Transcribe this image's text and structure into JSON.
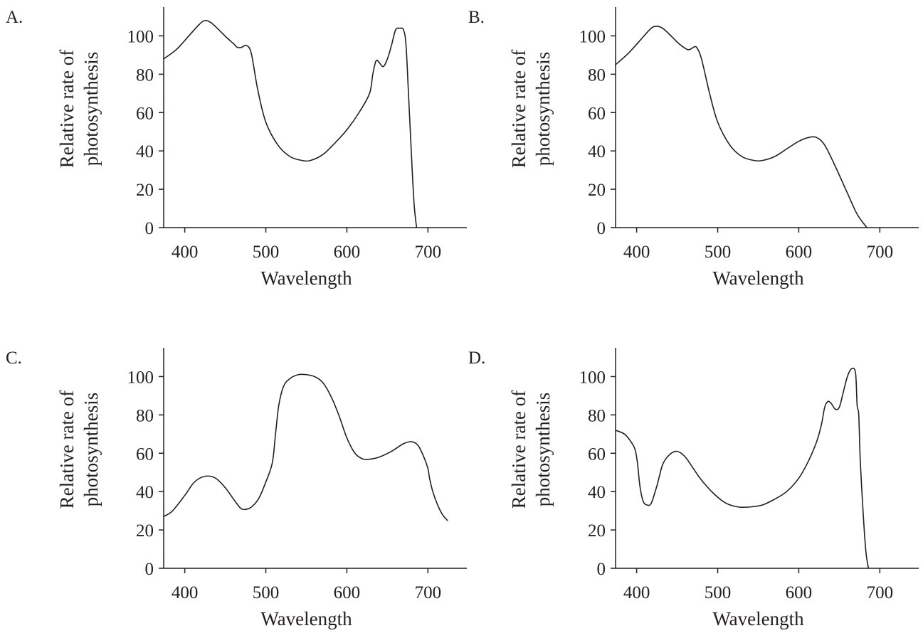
{
  "figure": {
    "panels": [
      "A.",
      "B.",
      "C.",
      "D."
    ]
  },
  "chart_data": [
    {
      "type": "line",
      "panel": "A.",
      "xlabel": "Wavelength",
      "ylabel": [
        "Relative rate of",
        "photosynthesis"
      ],
      "xticks": [
        400,
        500,
        600,
        700
      ],
      "yticks": [
        0,
        20,
        40,
        60,
        80,
        100
      ],
      "xlim": [
        374,
        748
      ],
      "ylim": [
        0,
        115
      ],
      "grid": false,
      "series": [
        {
          "x": [
            374,
            390,
            405,
            418,
            425,
            432,
            440,
            452,
            460,
            465,
            470,
            476,
            482,
            490,
            500,
            515,
            530,
            545,
            555,
            570,
            585,
            600,
            615,
            628,
            632,
            636,
            640,
            645,
            650,
            655,
            660,
            665,
            670,
            673,
            676,
            680,
            683,
            686
          ],
          "y": [
            88,
            93,
            100,
            106,
            108,
            107,
            104,
            99,
            96,
            94,
            94,
            95,
            91,
            72,
            55,
            43,
            37,
            35,
            35,
            38,
            44,
            51,
            60,
            70,
            80,
            87,
            86,
            84,
            88,
            95,
            103,
            104,
            103,
            95,
            70,
            35,
            12,
            0
          ]
        }
      ]
    },
    {
      "type": "line",
      "panel": "B.",
      "xlabel": "Wavelength",
      "ylabel": [
        "Relative rate of",
        "photosynthesis"
      ],
      "xticks": [
        400,
        500,
        600,
        700
      ],
      "yticks": [
        0,
        20,
        40,
        60,
        80,
        100
      ],
      "xlim": [
        374,
        748
      ],
      "ylim": [
        0,
        115
      ],
      "grid": false,
      "series": [
        {
          "x": [
            374,
            390,
            405,
            418,
            425,
            432,
            440,
            452,
            462,
            466,
            470,
            474,
            480,
            490,
            500,
            515,
            530,
            545,
            555,
            570,
            585,
            600,
            612,
            622,
            632,
            645,
            660,
            672,
            684
          ],
          "y": [
            85,
            91,
            98,
            104,
            105,
            104,
            101,
            96,
            93,
            93,
            94,
            94,
            88,
            70,
            55,
            43,
            37,
            35,
            35,
            37,
            41,
            45,
            47,
            47,
            43,
            32,
            18,
            7,
            0
          ]
        }
      ]
    },
    {
      "type": "line",
      "panel": "C.",
      "xlabel": "Wavelength",
      "ylabel": [
        "Relative rate of",
        "photosynthesis"
      ],
      "xticks": [
        400,
        500,
        600,
        700
      ],
      "yticks": [
        0,
        20,
        40,
        60,
        80,
        100
      ],
      "xlim": [
        374,
        748
      ],
      "ylim": [
        0,
        115
      ],
      "grid": false,
      "series": [
        {
          "x": [
            374,
            385,
            400,
            412,
            425,
            438,
            450,
            462,
            470,
            478,
            485,
            492,
            500,
            508,
            512,
            516,
            522,
            530,
            540,
            550,
            560,
            570,
            580,
            590,
            600,
            610,
            620,
            630,
            640,
            655,
            670,
            680,
            688,
            695,
            700,
            702,
            706,
            712,
            718,
            724
          ],
          "y": [
            27,
            30,
            38,
            45,
            48,
            47,
            42,
            35,
            31,
            31,
            33,
            37,
            45,
            55,
            70,
            85,
            95,
            99,
            101,
            101,
            100,
            97,
            90,
            80,
            68,
            60,
            57,
            57,
            58,
            61,
            65,
            66,
            64,
            58,
            52,
            47,
            40,
            33,
            28,
            25
          ]
        }
      ]
    },
    {
      "type": "line",
      "panel": "D.",
      "xlabel": "Wavelength",
      "ylabel": [
        "Relative rate of",
        "photosynthesis"
      ],
      "xticks": [
        400,
        500,
        600,
        700
      ],
      "yticks": [
        0,
        20,
        40,
        60,
        80,
        100
      ],
      "xlim": [
        374,
        748
      ],
      "ylim": [
        0,
        115
      ],
      "grid": false,
      "series": [
        {
          "x": [
            374,
            385,
            393,
            398,
            401,
            404,
            408,
            413,
            418,
            425,
            432,
            440,
            448,
            455,
            462,
            470,
            480,
            495,
            510,
            525,
            540,
            555,
            570,
            585,
            600,
            612,
            622,
            628,
            632,
            636,
            640,
            645,
            650,
            655,
            660,
            665,
            670,
            672,
            674,
            676,
            680,
            683,
            686
          ],
          "y": [
            72,
            70,
            66,
            62,
            55,
            43,
            35,
            33,
            34,
            43,
            54,
            59,
            61,
            60,
            57,
            52,
            46,
            39,
            34,
            32,
            32,
            33,
            36,
            40,
            47,
            56,
            66,
            75,
            84,
            87,
            86,
            83,
            84,
            92,
            100,
            104,
            102,
            85,
            80,
            55,
            25,
            8,
            0
          ]
        }
      ]
    }
  ]
}
